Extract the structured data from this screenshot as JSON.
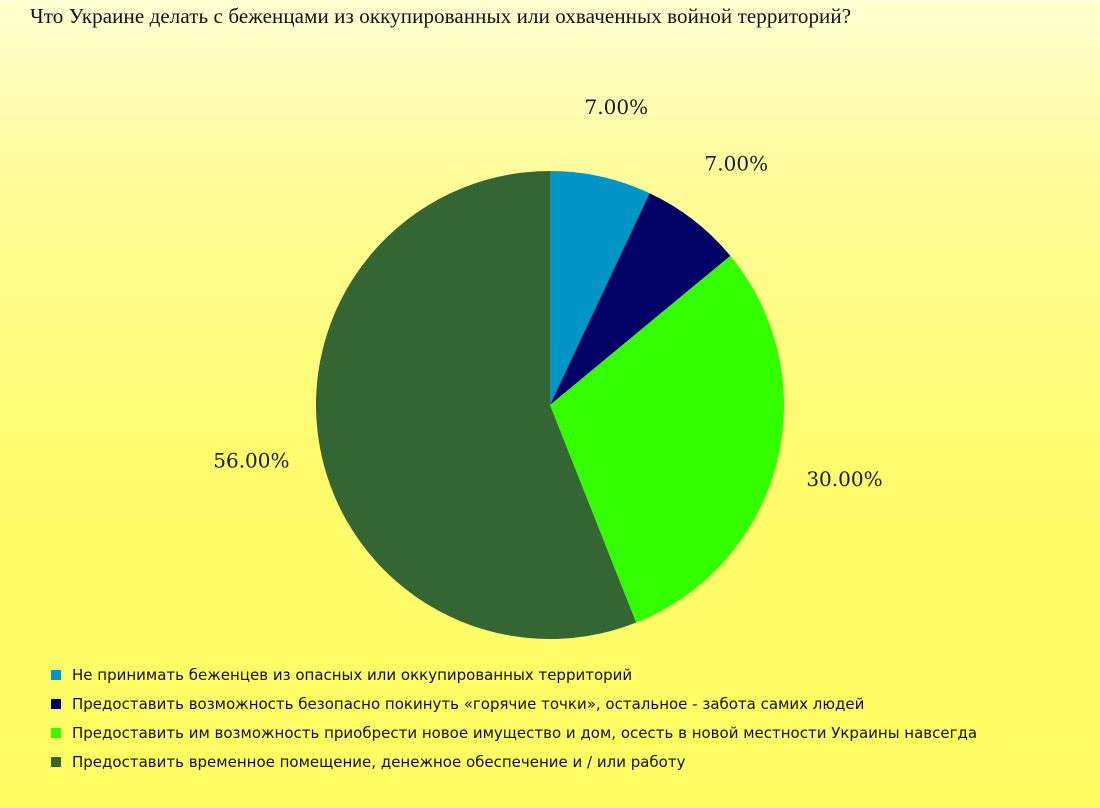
{
  "chart_data": {
    "type": "pie",
    "title": "Что Украине делать с беженцами из оккупированных или охваченных войной территорий?",
    "categories": [
      "Не принимать беженцев из опасных или оккупированных территорий",
      "Предоставить возможность безопасно покинуть «горячие точки», остальное - забота самих людей",
      "Предоставить им возможность приобрести новое имущество и дом, осесть в новой местности Украины навсегда",
      "Предоставить временное помещение, денежное обеспечение и / или работу"
    ],
    "values": [
      7,
      7,
      30,
      56
    ],
    "labels": [
      "7.00%",
      "7.00%",
      "30.00%",
      "56.00%"
    ],
    "colors": [
      "#0095c6",
      "#000066",
      "#33ff00",
      "#336633"
    ],
    "legend_position": "bottom-left"
  },
  "legend": {
    "items": [
      {
        "label": "Не принимать беженцев из опасных или оккупированных территорий",
        "color": "#0095c6"
      },
      {
        "label": "Предоставить возможность безопасно покинуть «горячие точки», остальное - забота самих людей",
        "color": "#000066"
      },
      {
        "label": "Предоставить им возможность приобрести новое имущество и дом, осесть в новой местности Украины навсегда",
        "color": "#33ff00"
      },
      {
        "label": "Предоставить временное помещение, денежное обеспечение и / или работу",
        "color": "#336633"
      }
    ]
  }
}
